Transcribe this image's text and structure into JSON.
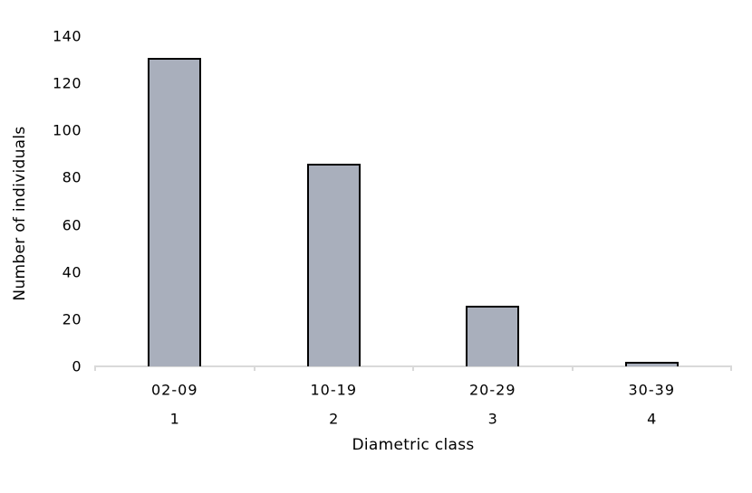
{
  "chart_data": {
    "type": "bar",
    "title": "",
    "xlabel": "Diametric class",
    "ylabel": "Number of individuals",
    "categories": [
      "02-09",
      "10-19",
      "20-29",
      "30-39"
    ],
    "category_numbers": [
      "1",
      "2",
      "3",
      "4"
    ],
    "values": [
      130,
      85,
      25,
      1
    ],
    "yticks": [
      0,
      20,
      40,
      60,
      80,
      100,
      120,
      140
    ],
    "ylim": [
      0,
      140
    ],
    "grid": false,
    "legend_position": "none",
    "bar_fill_color": "#a9afbc",
    "bar_border_color": "#000000",
    "axis_line_color": "#d9d9d9",
    "text_color": "#000000",
    "background_color": "#ffffff"
  }
}
